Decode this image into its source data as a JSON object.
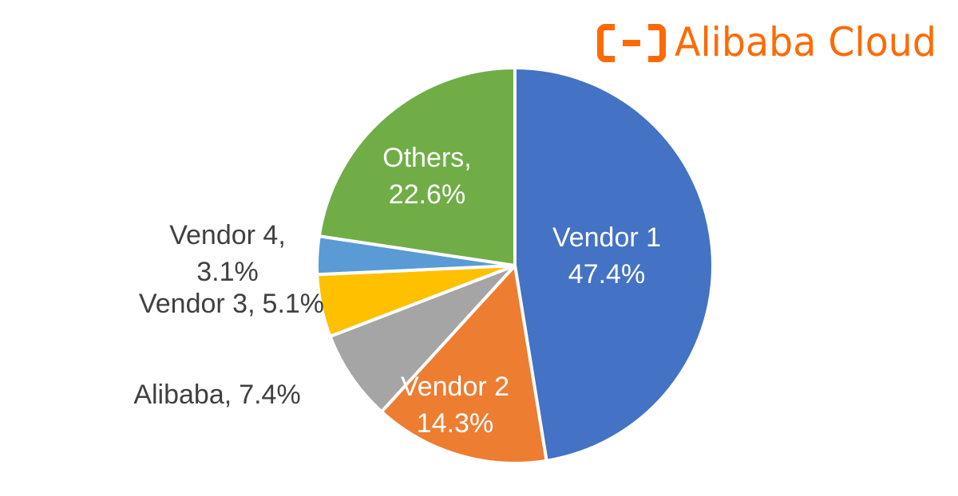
{
  "logo": "Alibaba Cloud",
  "chart_data": {
    "type": "pie",
    "categories": [
      "Vendor 1",
      "Vendor 2",
      "Alibaba,",
      "Vendor 3,",
      "Vendor 4,",
      "Others,"
    ],
    "values": [
      47.4,
      14.3,
      7.4,
      5.1,
      3.1,
      22.6
    ],
    "value_labels": [
      "47.4%",
      "14.3%",
      "7.4%",
      "5.1%",
      "3.1%",
      "22.6%"
    ],
    "colors": [
      "#4472C4",
      "#ED7D31",
      "#A5A5A5",
      "#FFC000",
      "#5B9BD5",
      "#70AD47"
    ]
  }
}
